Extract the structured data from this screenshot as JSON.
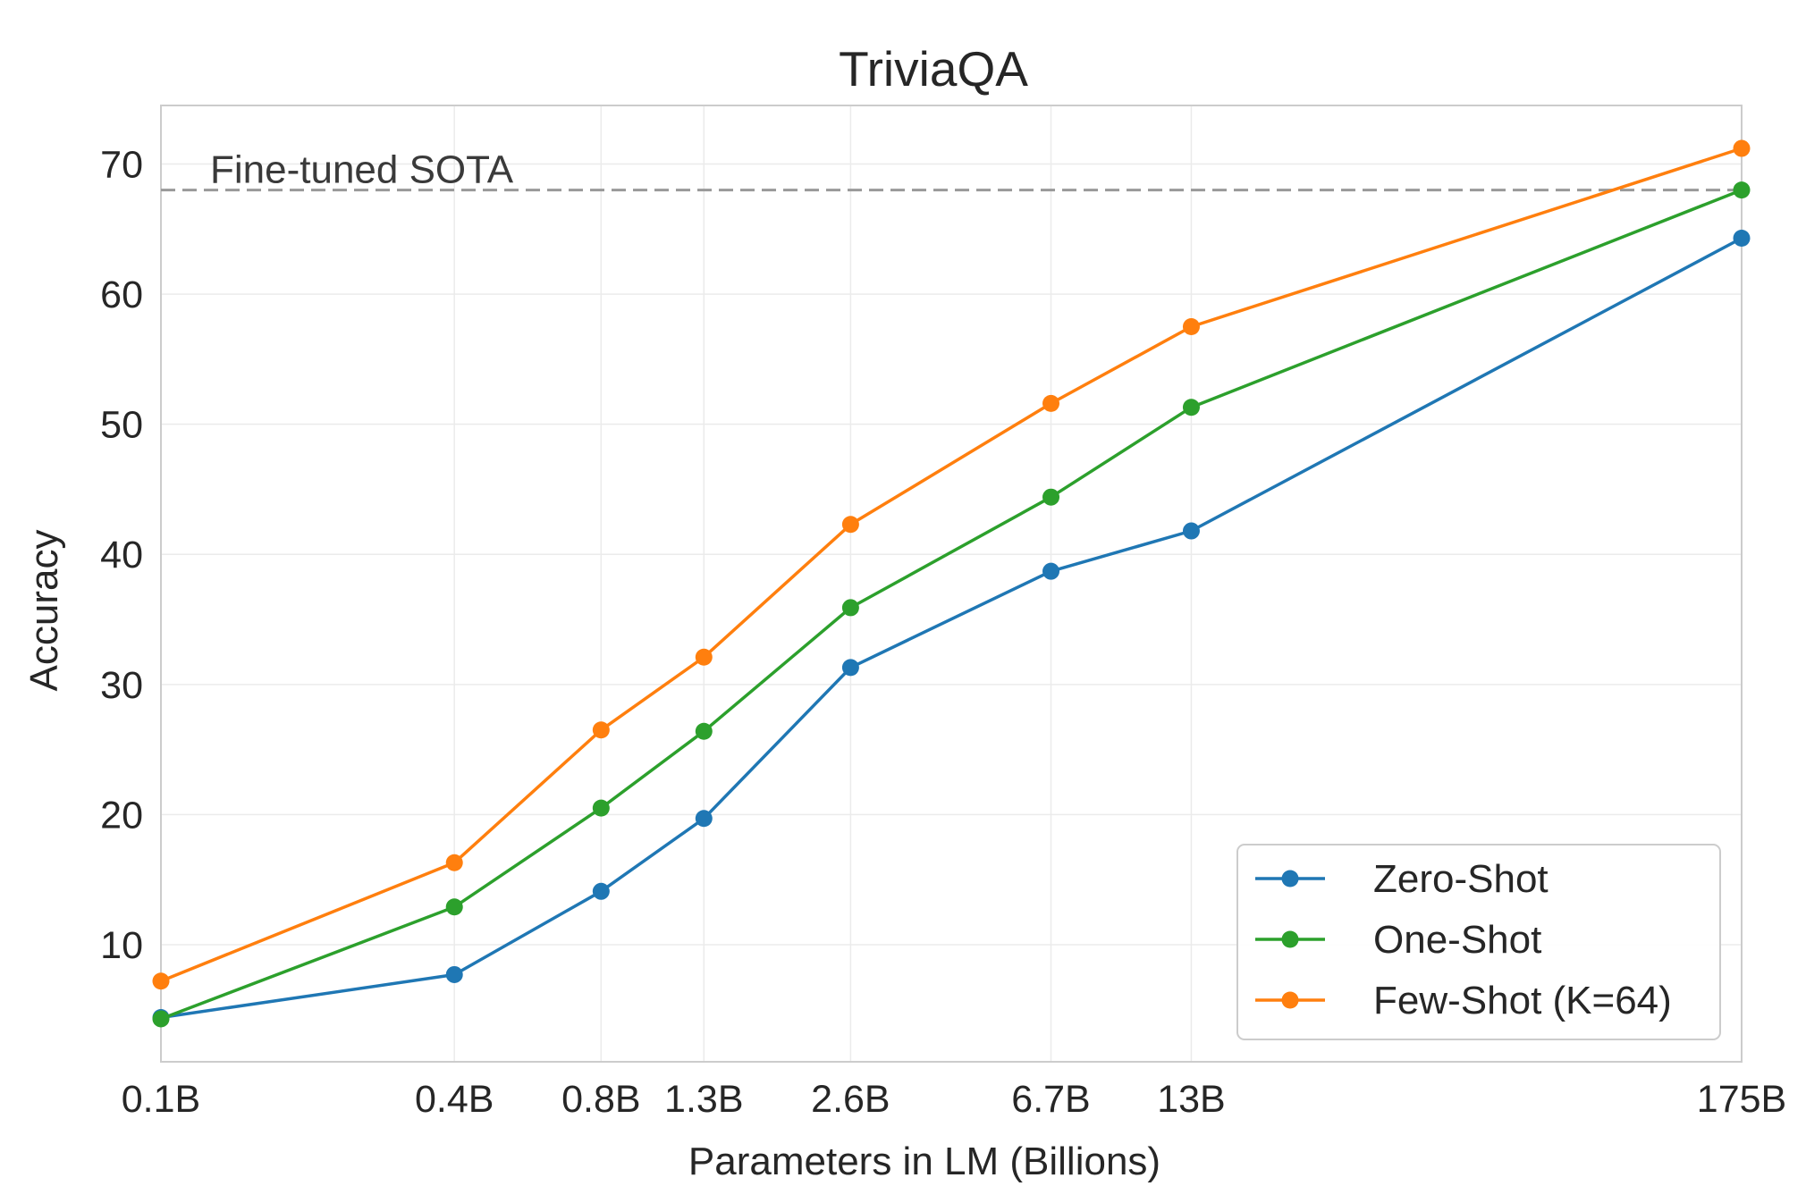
{
  "chart_data": {
    "type": "line",
    "title": "TriviaQA",
    "xlabel": "Parameters in LM (Billions)",
    "ylabel": "Accuracy",
    "x": [
      0.1,
      0.4,
      0.8,
      1.3,
      2.6,
      6.7,
      13,
      175
    ],
    "xscale": "log",
    "xtick_labels": [
      "0.1B",
      "0.4B",
      "0.8B",
      "1.3B",
      "2.6B",
      "6.7B",
      "13B",
      "175B"
    ],
    "ylim": [
      1,
      74.5
    ],
    "yticks": [
      10,
      20,
      30,
      40,
      50,
      60,
      70
    ],
    "grid": true,
    "legend_position": "lower-right",
    "reference_line": {
      "label": "Fine-tuned SOTA",
      "value": 68.0,
      "color": "#999999",
      "style": "dashed"
    },
    "series": [
      {
        "name": "Zero-Shot",
        "color": "#1f77b4",
        "values": [
          4.4,
          7.7,
          14.1,
          19.7,
          31.3,
          38.7,
          41.8,
          64.3
        ]
      },
      {
        "name": "One-Shot",
        "color": "#2ca02c",
        "values": [
          4.3,
          12.9,
          20.5,
          26.4,
          35.9,
          44.4,
          51.3,
          68.0
        ]
      },
      {
        "name": "Few-Shot (K=64)",
        "color": "#ff7f0e",
        "values": [
          7.2,
          16.3,
          26.5,
          32.1,
          42.3,
          51.6,
          57.5,
          71.2
        ]
      }
    ]
  }
}
